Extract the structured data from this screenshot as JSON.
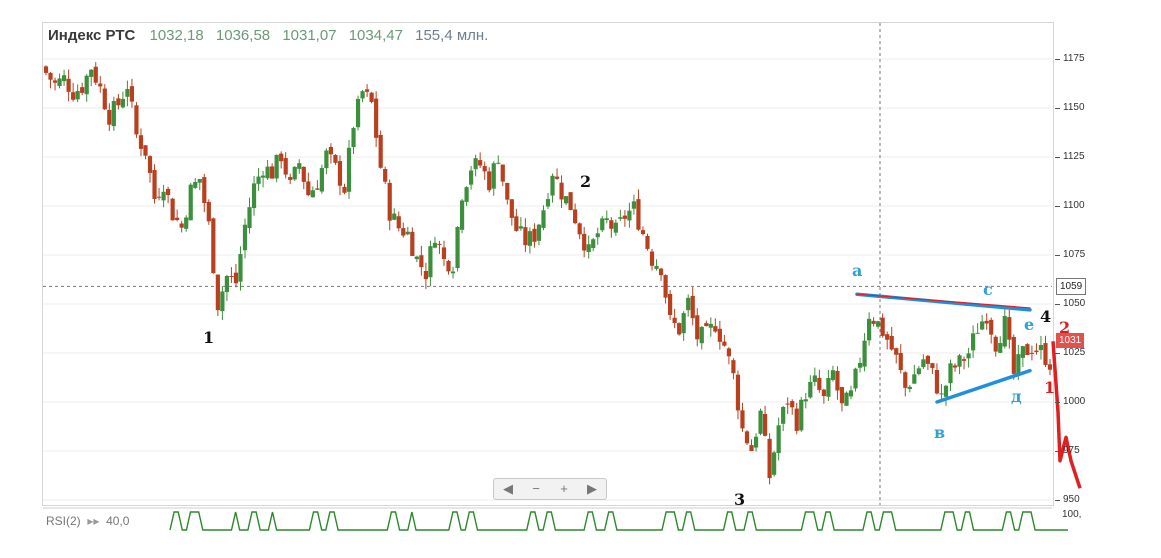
{
  "header": {
    "ticker": "Индекс РТС",
    "open": "1032,18",
    "high": "1036,58",
    "low": "1031,07",
    "close": "1034,47",
    "volume": "155,4 млн."
  },
  "price_tags": {
    "crosshair": "1059",
    "last": "1031"
  },
  "zoom_controls": [
    "◀",
    "−",
    "+",
    "▶"
  ],
  "rsi": {
    "label": "RSI(2)",
    "value": "40,0",
    "axis_max": "100,"
  },
  "colors": {
    "up": "#3c8f3c",
    "down": "#b8401f",
    "trend_blue": "#1f8fe0",
    "trend_red": "#e02020",
    "label_blue": "#2f9fd8",
    "label_black": "#111111",
    "label_red": "#d42020"
  },
  "chart_data": {
    "type": "candlestick",
    "y_axis": {
      "ticks": [
        "1175",
        "1150",
        "1125",
        "1100",
        "1075",
        "1050",
        "1025",
        "1000",
        "975",
        "950"
      ]
    },
    "crosshair": {
      "price": 1059
    },
    "close_path": [
      1168,
      1162,
      1165,
      1158,
      1161,
      1171,
      1160,
      1146,
      1152,
      1162,
      1136,
      1128,
      1104,
      1112,
      1096,
      1089,
      1108,
      1114,
      1090,
      1050,
      1064,
      1061,
      1090,
      1110,
      1120,
      1117,
      1126,
      1110,
      1122,
      1106,
      1112,
      1126,
      1119,
      1109,
      1142,
      1158,
      1152,
      1120,
      1097,
      1089,
      1086,
      1073,
      1066,
      1086,
      1072,
      1071,
      1107,
      1120,
      1121,
      1112,
      1126,
      1101,
      1088,
      1082,
      1085,
      1099,
      1118,
      1107,
      1100,
      1088,
      1076,
      1086,
      1092,
      1087,
      1095,
      1099,
      1086,
      1073,
      1069,
      1041,
      1037,
      1051,
      1033,
      1034,
      1040,
      1029,
      1013,
      986,
      976,
      994,
      962,
      988,
      1001,
      990,
      1005,
      1010,
      1001,
      1015,
      997,
      1003,
      1022,
      1045,
      1040,
      1032,
      1022,
      1007,
      1014,
      1022,
      1014,
      1002,
      1016,
      1020,
      1025,
      1038,
      1045,
      1030,
      1040,
      1014,
      1025,
      1028,
      1026,
      1020
    ],
    "projection": [
      1031,
      995,
      970,
      982,
      970,
      956
    ],
    "trend_lines": [
      {
        "color": "blue",
        "from": [
          "a",
          1055
        ],
        "to": [
          "c",
          1047
        ]
      },
      {
        "color": "red",
        "from": [
          "a",
          1055
        ],
        "to": [
          "c",
          1048
        ]
      },
      {
        "color": "blue",
        "from": [
          "в",
          1000
        ],
        "to": [
          "д",
          1016
        ]
      }
    ],
    "wave_labels": [
      {
        "text": "1",
        "color": "black",
        "at_price": 1034
      },
      {
        "text": "2",
        "color": "black",
        "at_price": 1109
      },
      {
        "text": "3",
        "color": "black",
        "at_price": 950
      },
      {
        "text": "4",
        "color": "black",
        "at_price": 1042
      },
      {
        "text": "a",
        "color": "blue",
        "at_price": 1064
      },
      {
        "text": "в",
        "color": "blue",
        "at_price": 985
      },
      {
        "text": "с",
        "color": "blue",
        "at_price": 1055
      },
      {
        "text": "д",
        "color": "blue",
        "at_price": 1002
      },
      {
        "text": "е",
        "color": "blue",
        "at_price": 1038
      },
      {
        "text": "1",
        "color": "red",
        "at_price": 1007
      },
      {
        "text": "2",
        "color": "red",
        "at_price": 1035
      }
    ]
  }
}
